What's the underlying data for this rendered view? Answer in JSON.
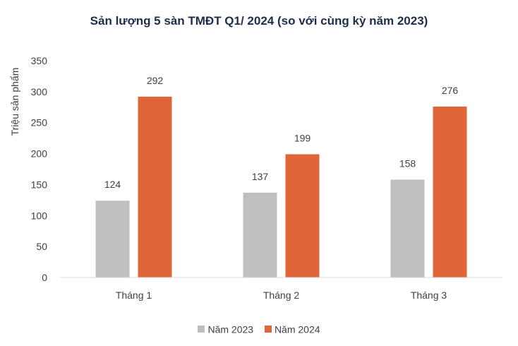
{
  "chart_data": {
    "type": "bar",
    "title": "Sản lượng 5 sàn TMĐT Q1/ 2024 (so với cùng kỳ năm 2023)",
    "xlabel": "",
    "ylabel": "Triệu sản phẩm",
    "categories": [
      "Tháng 1",
      "Tháng 2",
      "Tháng 3"
    ],
    "series": [
      {
        "name": "Năm 2023",
        "values": [
          124,
          137,
          158
        ],
        "color": "#bfbfbf"
      },
      {
        "name": "Năm 2024",
        "values": [
          292,
          199,
          276
        ],
        "color": "#e0663a"
      }
    ],
    "ylim": [
      0,
      350
    ],
    "yticks": [
      0,
      50,
      100,
      150,
      200,
      250,
      300,
      350
    ],
    "grid": false,
    "legend": "bottom",
    "data_labels": true
  }
}
